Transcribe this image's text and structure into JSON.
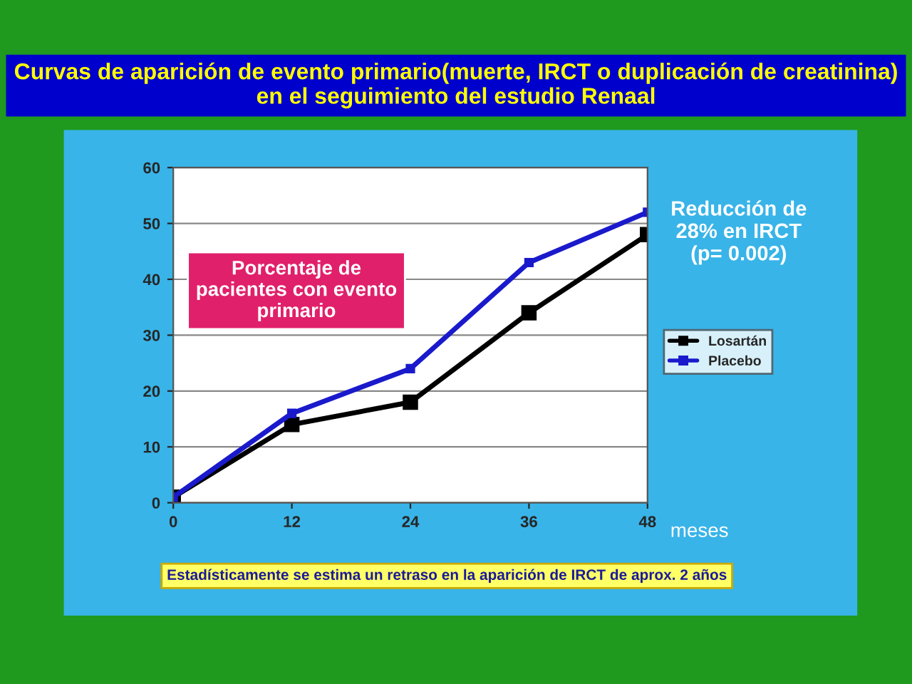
{
  "chart_data": {
    "type": "line",
    "title": "Curvas de aparición de evento primario(muerte, IRCT o duplicación de creatinina) en el seguimiento del estudio Renaal",
    "x": [
      0,
      12,
      24,
      36,
      48
    ],
    "series": [
      {
        "name": "Losartán",
        "color": "#000000",
        "values": [
          1,
          14,
          18,
          34,
          48
        ]
      },
      {
        "name": "Placebo",
        "color": "#1a1acc",
        "values": [
          1,
          16,
          24,
          43,
          52
        ]
      }
    ],
    "xlabel": "meses",
    "xlim": [
      0,
      48
    ],
    "xticks": [
      0,
      12,
      24,
      36,
      48
    ],
    "ylim": [
      0,
      60
    ],
    "yticks": [
      0,
      10,
      20,
      30,
      40,
      50,
      60
    ],
    "grid": "y",
    "legend": "right",
    "marker": "square",
    "line_style": "solid",
    "annotations": [
      "Porcentaje de pacientes con evento primario",
      "Reducción de 28% en IRCT (p= 0.002)",
      "Estadísticamente se estima un retraso en la aparición de IRCT de aprox. 2 años"
    ]
  }
}
